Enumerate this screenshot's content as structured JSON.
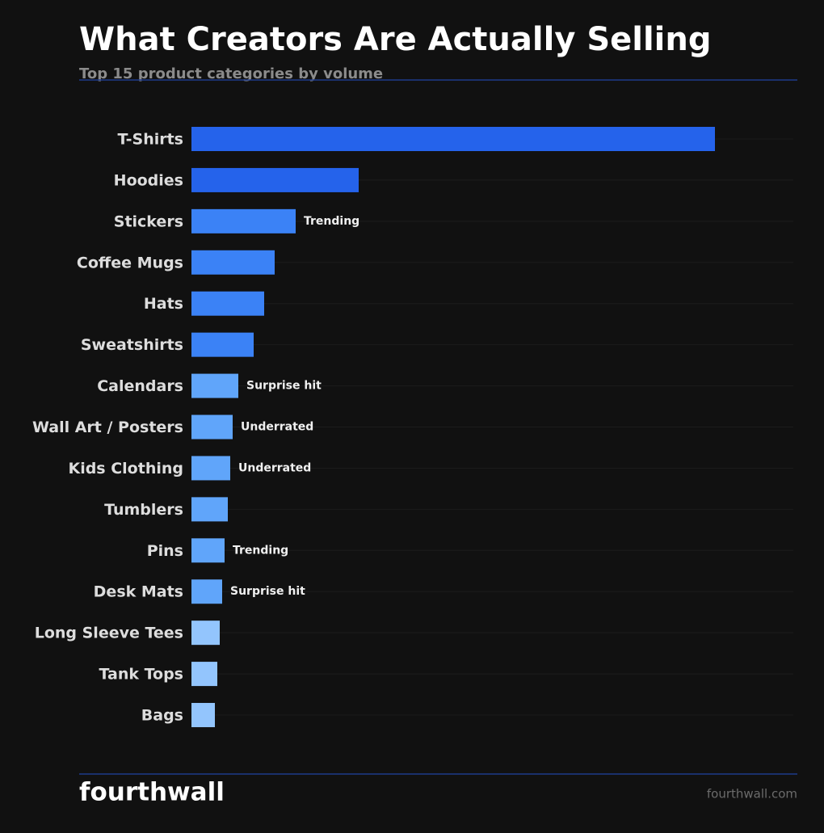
{
  "chart_data": {
    "type": "barh",
    "title": "What Creators Are Actually Selling",
    "subtitle": "Top 15 product categories by volume",
    "categories": [
      "T-Shirts",
      "Hoodies",
      "Stickers",
      "Coffee Mugs",
      "Hats",
      "Sweatshirts",
      "Calendars",
      "Wall Art / Posters",
      "Kids Clothing",
      "Tumblers",
      "Pins",
      "Desk Mats",
      "Long Sleeve Tees",
      "Tank Tops",
      "Bags"
    ],
    "values": [
      648,
      207,
      129,
      103,
      90,
      77,
      58,
      51,
      48,
      45,
      41,
      38,
      35,
      32,
      29
    ],
    "colors": [
      "#2563eb",
      "#2563eb",
      "#3b82f6",
      "#3b82f6",
      "#3b82f6",
      "#3b82f6",
      "#60a5fa",
      "#60a5fa",
      "#60a5fa",
      "#60a5fa",
      "#60a5fa",
      "#60a5fa",
      "#93c5fd",
      "#93c5fd",
      "#93c5fd"
    ],
    "annotations": [
      null,
      null,
      "Trending",
      null,
      null,
      null,
      "Surprise hit",
      "Underrated",
      "Underrated",
      null,
      "Trending",
      "Surprise hit",
      null,
      null,
      null
    ],
    "xlim": [
      0,
      745
    ]
  },
  "footer": {
    "brand": "fourthwall",
    "url": "fourthwall.com"
  }
}
